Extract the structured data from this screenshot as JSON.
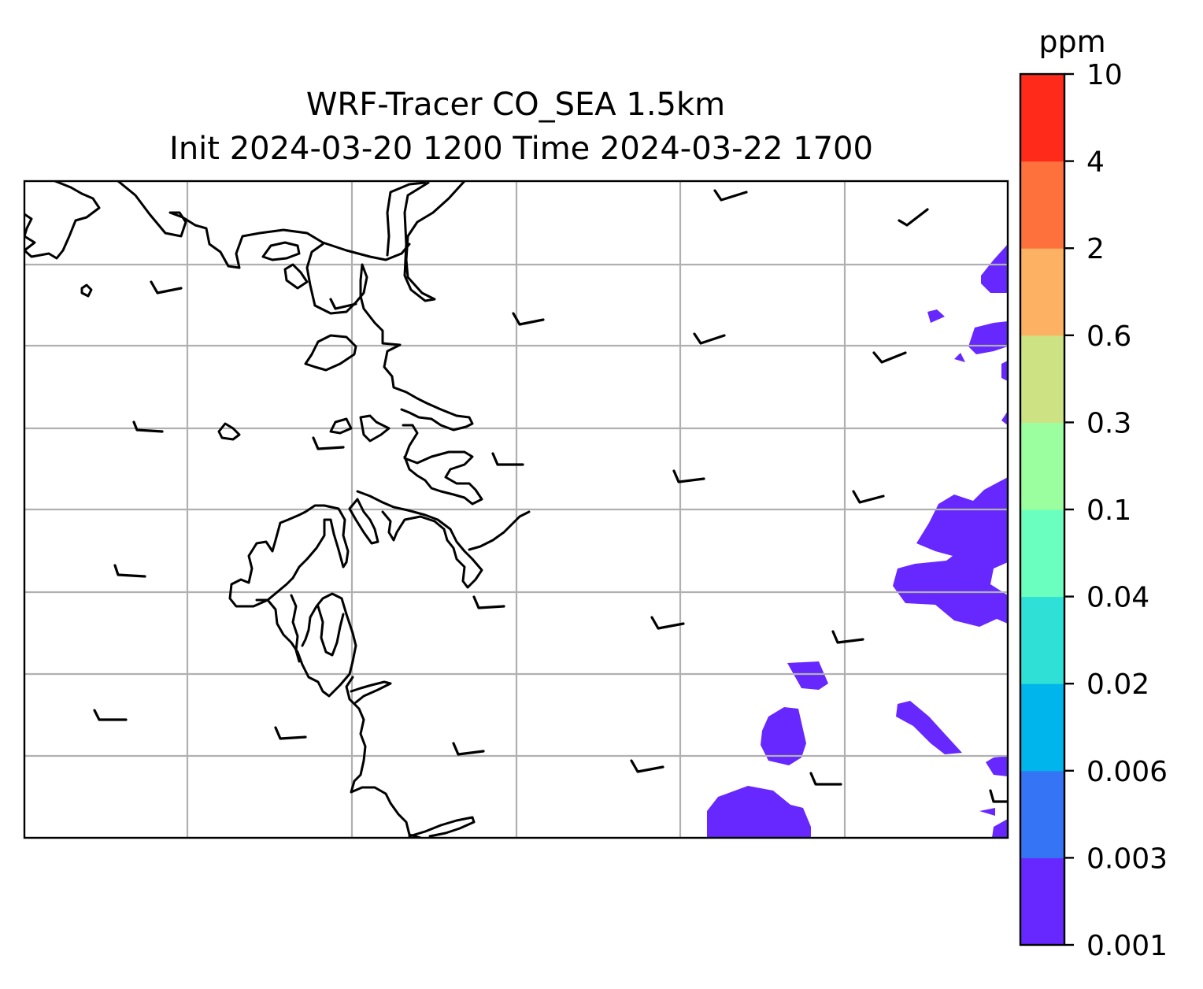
{
  "figure": {
    "title_line1": "WRF-Tracer CO_SEA 1.5km",
    "title_line2": "Init 2024-03-20 1200 Time 2024-03-22 1700"
  },
  "colorbar": {
    "unit": "ppm",
    "levels": [
      "0.001",
      "0.003",
      "0.006",
      "0.02",
      "0.04",
      "0.1",
      "0.3",
      "0.6",
      "2",
      "4",
      "10"
    ],
    "colors": [
      "#6628ff",
      "#3574f4",
      "#00b5ec",
      "#2fe0d6",
      "#6bffbf",
      "#9cff9f",
      "#cde283",
      "#fdb163",
      "#ff713c",
      "#ff2a1a"
    ]
  },
  "map": {
    "tracer_fill_color": "#6628ff",
    "gridlines": true,
    "wind_barbs": true
  }
}
